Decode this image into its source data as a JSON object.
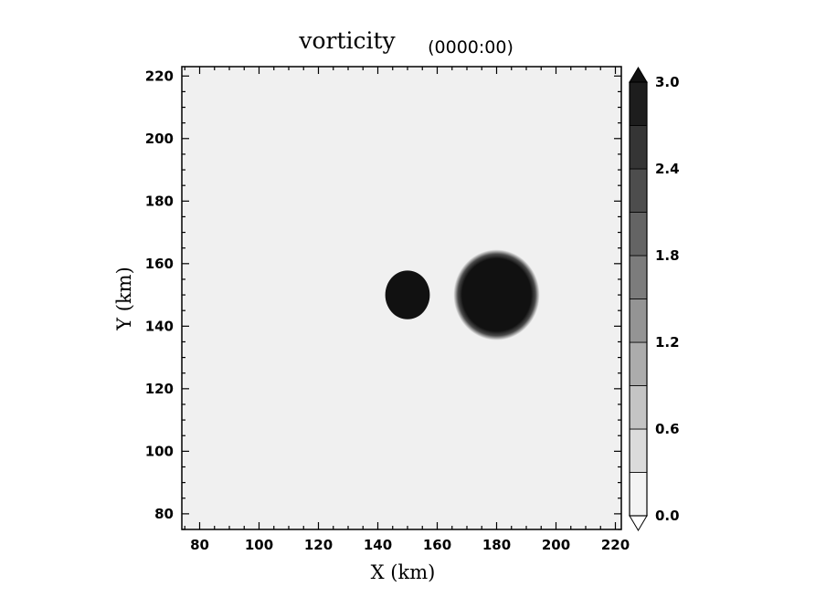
{
  "chart_data": {
    "type": "heatmap",
    "title": "vorticity",
    "subtitle": "(0000:00)",
    "xlabel": "X (km)",
    "ylabel": "Y (km)",
    "xlim": [
      74,
      222
    ],
    "ylim": [
      75,
      223
    ],
    "x_ticks": [
      80,
      100,
      120,
      140,
      160,
      180,
      200,
      220
    ],
    "y_ticks": [
      80,
      100,
      120,
      140,
      160,
      180,
      200,
      220
    ],
    "background_value": 0.1,
    "vortices": [
      {
        "name": "small",
        "cx": 150,
        "cy": 150,
        "rx": 7.5,
        "ry": 7.8,
        "value": 3.0,
        "edge": "sharp"
      },
      {
        "name": "large",
        "cx": 180,
        "cy": 150,
        "r": 14.5,
        "value": 3.0,
        "edge": "smooth"
      }
    ],
    "colorbar": {
      "min": 0.0,
      "max": 3.0,
      "ticks": [
        0.0,
        0.6,
        1.2,
        1.8,
        2.4,
        3.0
      ],
      "tick_labels": [
        "0.0",
        "0.6",
        "1.2",
        "1.8",
        "2.4",
        "3.0"
      ],
      "levels": 10,
      "extend": "both",
      "colormap": "grayscale-white-to-black"
    }
  }
}
